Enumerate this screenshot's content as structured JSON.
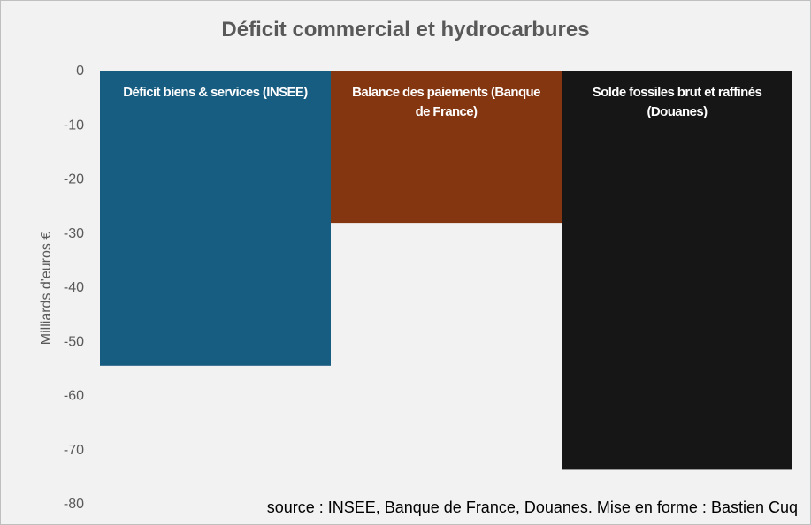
{
  "chart_data": {
    "type": "bar",
    "title": "Déficit commercial et hydrocarbures",
    "ylabel": "Milliards d'euros €",
    "xlabel": "",
    "ylim": [
      -80,
      0
    ],
    "yticks": [
      "0",
      "-10",
      "-20",
      "-30",
      "-40",
      "-50",
      "-60",
      "-70",
      "-80"
    ],
    "grid": false,
    "categories": [
      [
        "Déficit biens & services (INSEE)"
      ],
      [
        "Balance des paiements (Banque",
        "de France)"
      ],
      [
        "Solde fossiles brut et raffinés",
        "(Douanes)"
      ]
    ],
    "values": [
      -54.5,
      -28.1,
      -73.7
    ],
    "colors": [
      "#175c81",
      "#843611",
      "#161616"
    ]
  },
  "source": "source : INSEE, Banque de France,  Douanes. Mise en forme : Bastien Cuq"
}
